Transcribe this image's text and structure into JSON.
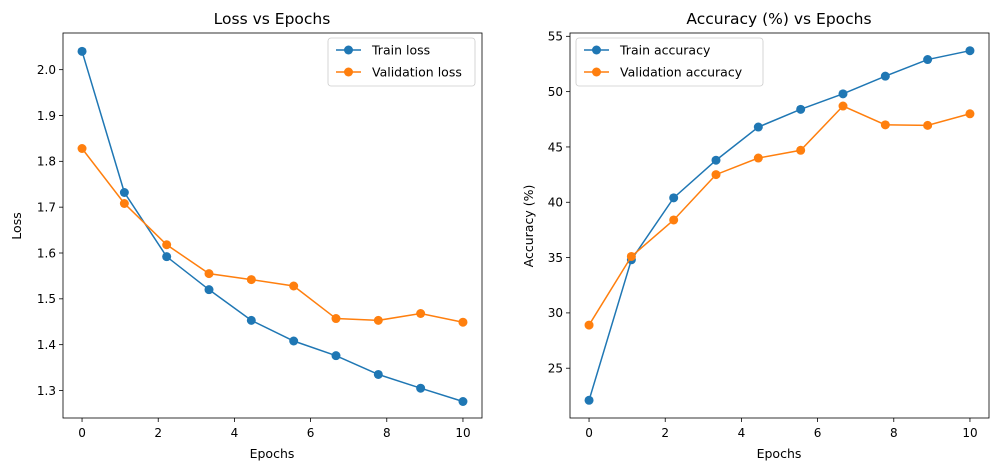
{
  "chart_data": [
    {
      "type": "line",
      "title": "Loss vs Epochs",
      "xlabel": "Epochs",
      "ylabel": "Loss",
      "xlim": [
        -0.5,
        10.5
      ],
      "ylim": [
        1.24,
        2.08
      ],
      "xticks": [
        0,
        2,
        4,
        6,
        8,
        10
      ],
      "yticks": [
        1.3,
        1.4,
        1.5,
        1.6,
        1.7,
        1.8,
        1.9,
        2.0
      ],
      "ytick_labels": [
        "1.3",
        "1.4",
        "1.5",
        "1.6",
        "1.7",
        "1.8",
        "1.9",
        "2.0"
      ],
      "xtick_labels": [
        "0",
        "2",
        "4",
        "6",
        "8",
        "10"
      ],
      "grid": false,
      "legend_position": "top-right",
      "x": [
        0,
        1.111,
        2.222,
        3.333,
        4.444,
        5.556,
        6.667,
        7.778,
        8.889,
        10
      ],
      "series": [
        {
          "name": "Train loss",
          "color": "#1f77b4",
          "values": [
            2.04,
            1.732,
            1.592,
            1.52,
            1.453,
            1.408,
            1.376,
            1.335,
            1.305,
            1.276
          ]
        },
        {
          "name": "Validation loss",
          "color": "#ff7f0e",
          "values": [
            1.828,
            1.708,
            1.618,
            1.555,
            1.542,
            1.528,
            1.457,
            1.453,
            1.468,
            1.449
          ]
        }
      ]
    },
    {
      "type": "line",
      "title": "Accuracy (%) vs Epochs",
      "xlabel": "Epochs",
      "ylabel": "Accuracy (%)",
      "xlim": [
        -0.5,
        10.5
      ],
      "ylim": [
        20.5,
        55.3
      ],
      "xticks": [
        0,
        2,
        4,
        6,
        8,
        10
      ],
      "yticks": [
        25,
        30,
        35,
        40,
        45,
        50,
        55
      ],
      "ytick_labels": [
        "25",
        "30",
        "35",
        "40",
        "45",
        "50",
        "55"
      ],
      "xtick_labels": [
        "0",
        "2",
        "4",
        "6",
        "8",
        "10"
      ],
      "grid": false,
      "legend_position": "top-left",
      "x": [
        0,
        1.111,
        2.222,
        3.333,
        4.444,
        5.556,
        6.667,
        7.778,
        8.889,
        10
      ],
      "series": [
        {
          "name": "Train accuracy",
          "color": "#1f77b4",
          "values": [
            22.1,
            34.8,
            40.4,
            43.8,
            46.8,
            48.4,
            49.8,
            51.4,
            52.9,
            53.7
          ]
        },
        {
          "name": "Validation accuracy",
          "color": "#ff7f0e",
          "values": [
            28.9,
            35.1,
            38.4,
            42.5,
            44.0,
            44.7,
            48.7,
            47.0,
            46.95,
            48.0
          ]
        }
      ]
    }
  ]
}
